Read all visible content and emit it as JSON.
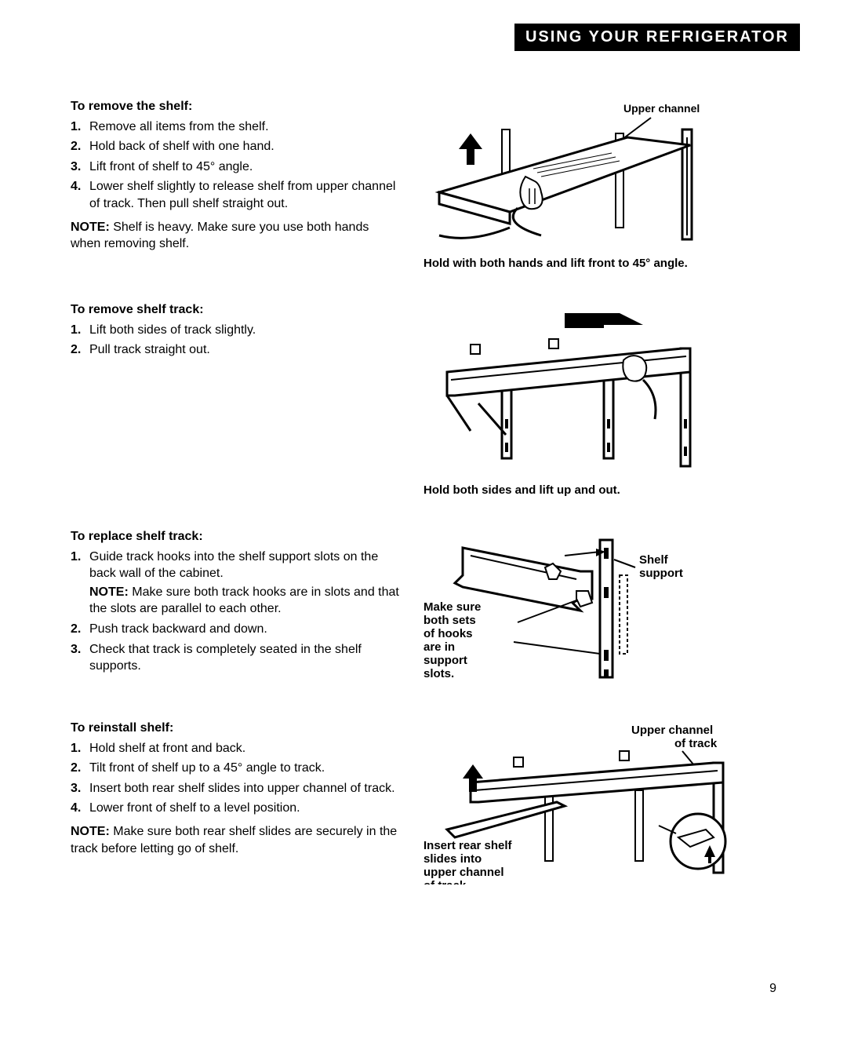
{
  "header": {
    "title": "USING YOUR REFRIGERATOR"
  },
  "section1": {
    "title": "To remove the shelf:",
    "steps": [
      "Remove all items from the shelf.",
      "Hold back of shelf with one hand.",
      "Lift front of shelf to 45° angle.",
      "Lower shelf slightly to release shelf from upper channel of track. Then pull shelf straight out."
    ],
    "note_label": "NOTE:",
    "note": "Shelf is heavy. Make sure you use both hands when removing shelf."
  },
  "diagram1": {
    "label": "Upper channel",
    "caption": "Hold with both hands and lift front to 45° angle."
  },
  "section2": {
    "title": "To remove shelf track:",
    "steps": [
      "Lift both sides of track slightly.",
      "Pull track straight out."
    ]
  },
  "diagram2": {
    "caption": "Hold both sides and lift up and out."
  },
  "section3": {
    "title": "To replace shelf track:",
    "steps": [
      "Guide track hooks into the shelf support slots on the back wall of the cabinet.",
      "Push track backward and down.",
      "Check that track is completely seated in the shelf supports."
    ],
    "sub_note_label": "NOTE:",
    "sub_note": "Make sure both track hooks are in slots and that the slots are parallel to each other."
  },
  "diagram3": {
    "label1": "Shelf support",
    "label2": "Make sure both sets of hooks are in support slots."
  },
  "section4": {
    "title": "To reinstall shelf:",
    "steps": [
      "Hold shelf at front and back.",
      "Tilt front of shelf up to a 45° angle to track.",
      "Insert both rear shelf slides into upper channel of track.",
      "Lower front of shelf to a level position."
    ],
    "note_label": "NOTE:",
    "note": "Make sure both rear shelf slides are securely in the track before letting go of shelf."
  },
  "diagram4": {
    "label1": "Upper channel of track",
    "label2": "Insert rear shelf slides into upper channel of track."
  },
  "page_number": "9"
}
